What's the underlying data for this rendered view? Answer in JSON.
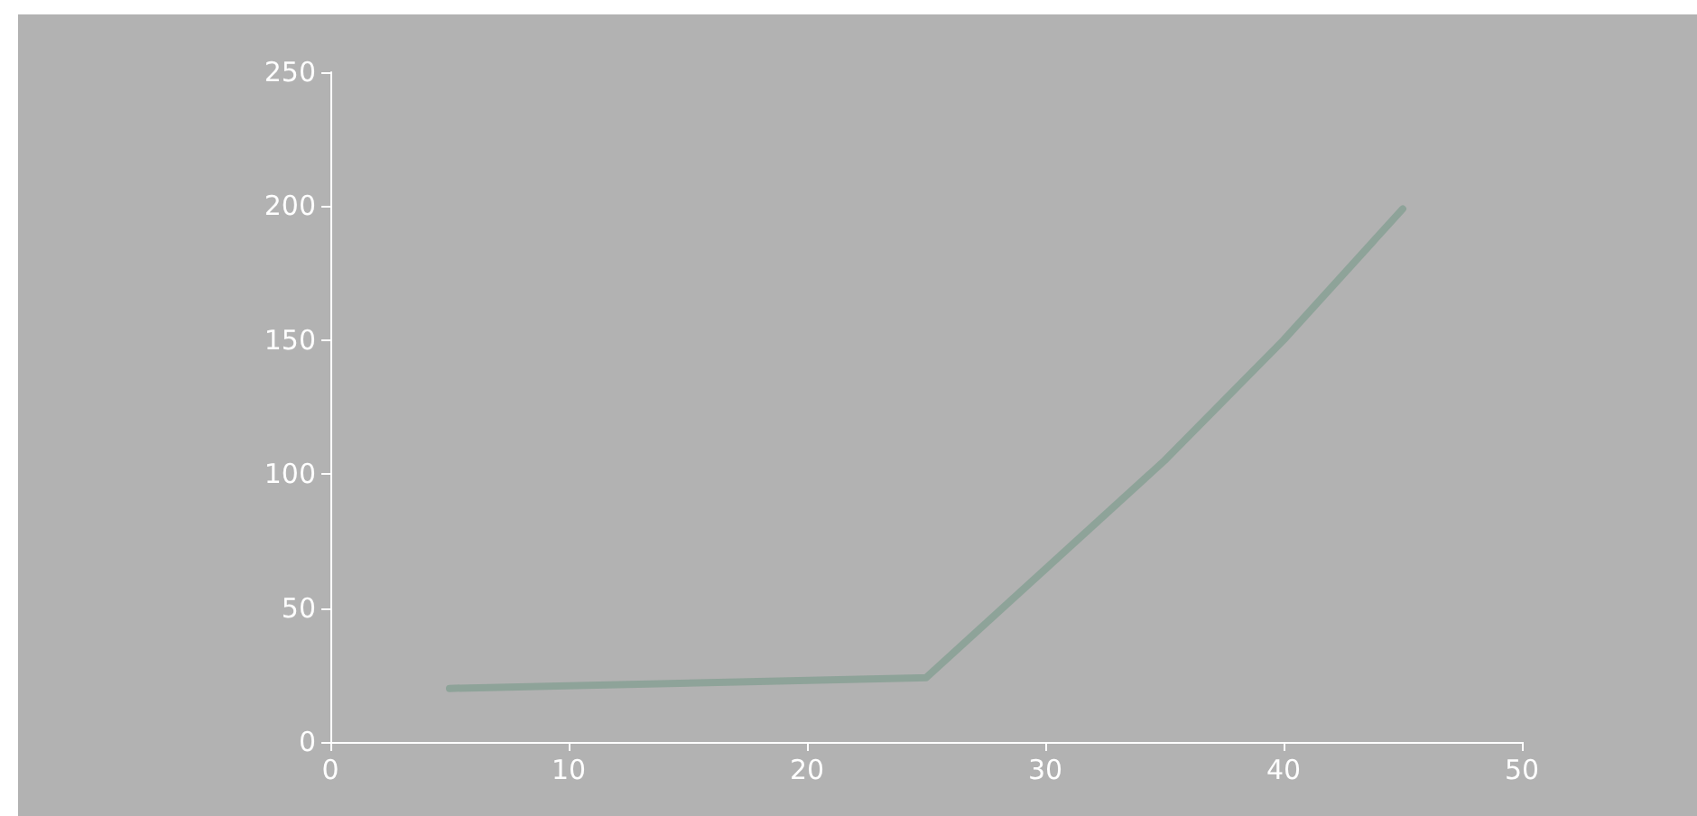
{
  "chart_data": {
    "type": "line",
    "x": [
      5,
      25,
      35,
      40,
      45
    ],
    "series": [
      {
        "color": "#8ea399",
        "values": [
          20,
          24,
          105,
          150,
          199
        ]
      }
    ],
    "xlim": [
      0,
      50
    ],
    "xticks": [
      0,
      10,
      20,
      30,
      40,
      50
    ],
    "ylim": [
      0,
      250
    ],
    "yticks": [
      0,
      50,
      100,
      150,
      200,
      250
    ],
    "grid": false,
    "marker": "none",
    "line_style": "solid"
  }
}
